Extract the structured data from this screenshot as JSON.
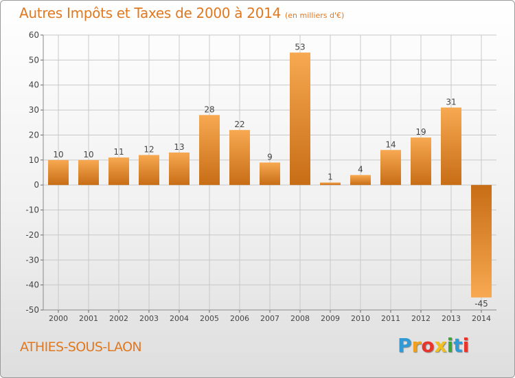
{
  "title": {
    "main": "Autres Impôts et Taxes de 2000 à 2014",
    "unit": "(en milliers d'€)"
  },
  "place_name": "ATHIES-SOUS-LAON",
  "logo": {
    "text": "Proxiti",
    "letter_colors": [
      "#2f9ad6",
      "#f0a020",
      "#e8342a",
      "#f0c020",
      "#3aa832",
      "#2f9ad6",
      "#e8342a"
    ]
  },
  "colors": {
    "bar_light": "#f7a951",
    "bar_dark": "#c76d16",
    "title": "#e07820",
    "axis_text": "#444444",
    "grid": "#c8c8c8"
  },
  "chart_data": {
    "type": "bar",
    "categories": [
      "2000",
      "2001",
      "2002",
      "2003",
      "2004",
      "2005",
      "2006",
      "2007",
      "2008",
      "2009",
      "2010",
      "2011",
      "2012",
      "2013",
      "2014"
    ],
    "values": [
      10,
      10,
      11,
      12,
      13,
      28,
      22,
      9,
      53,
      1,
      4,
      14,
      19,
      31,
      -45
    ],
    "value_labels": [
      "10",
      "10",
      "11",
      "12",
      "13",
      "28",
      "22",
      "9",
      "53",
      "1",
      "4",
      "14",
      "19",
      "31",
      "-45"
    ],
    "title": "Autres Impôts et Taxes de 2000 à 2014",
    "ylim": [
      -50,
      60
    ],
    "yticks": [
      60,
      50,
      40,
      30,
      20,
      10,
      0,
      -10,
      -20,
      -30,
      -40,
      -50
    ],
    "ytick_labels": [
      "60",
      "50",
      "40",
      "30",
      "20",
      "10",
      "0",
      "-10",
      "-20",
      "-30",
      "-40",
      "-50"
    ],
    "grid": true,
    "legend": "none"
  }
}
